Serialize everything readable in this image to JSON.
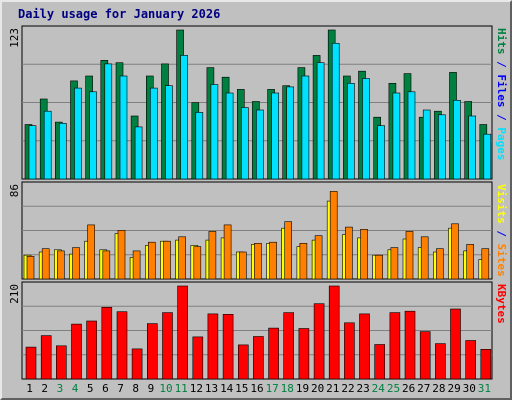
{
  "title": "Daily usage for January 2026",
  "colors": {
    "pages": "#00e0ff",
    "files": "#008040",
    "visits": "#ffff00",
    "sites": "#ff8000",
    "kbytes": "#ff0000",
    "weekend": "#008040",
    "weekday": "#000000",
    "title": "#000080",
    "slash": "#0000ff"
  },
  "chart_data": [
    {
      "type": "bar",
      "ymax_label": "123",
      "ylim": [
        0,
        123
      ],
      "legend_labels": [
        "Pages",
        "Files",
        "Hits"
      ],
      "categories": [
        "1",
        "2",
        "3",
        "4",
        "5",
        "6",
        "7",
        "8",
        "9",
        "10",
        "11",
        "12",
        "13",
        "14",
        "15",
        "16",
        "17",
        "18",
        "19",
        "20",
        "21",
        "22",
        "23",
        "24",
        "25",
        "26",
        "27",
        "28",
        "29",
        "30",
        "31"
      ],
      "weekend_days": [
        "3",
        "4",
        "10",
        "11",
        "17",
        "18",
        "24",
        "25",
        "31"
      ],
      "series": [
        {
          "name": "Hits",
          "values": [
            45,
            66,
            47,
            81,
            85,
            98,
            96,
            52,
            85,
            95,
            123,
            63,
            92,
            84,
            74,
            64,
            74,
            77,
            92,
            102,
            123,
            85,
            89,
            51,
            79,
            87,
            51,
            56,
            88,
            64,
            45
          ]
        },
        {
          "name": "Files",
          "values": [
            44,
            56,
            46,
            75,
            72,
            95,
            85,
            43,
            75,
            77,
            102,
            55,
            78,
            71,
            59,
            57,
            71,
            76,
            85,
            96,
            112,
            79,
            83,
            44,
            71,
            72,
            57,
            53,
            65,
            52,
            37
          ]
        },
        {
          "name": "Pages",
          "values": [
            42,
            46,
            47,
            41,
            53,
            78,
            68,
            28,
            65,
            68,
            84,
            50,
            66,
            53,
            43,
            49,
            52,
            70,
            70,
            81,
            99,
            67,
            55,
            38,
            62,
            67,
            41,
            43,
            76,
            45,
            28
          ]
        }
      ]
    },
    {
      "type": "bar",
      "ymax_label": "86",
      "ylim": [
        0,
        86
      ],
      "legend_labels": [
        "Sites",
        "Visits"
      ],
      "categories": [
        "1",
        "2",
        "3",
        "4",
        "5",
        "6",
        "7",
        "8",
        "9",
        "10",
        "11",
        "12",
        "13",
        "14",
        "15",
        "16",
        "17",
        "18",
        "19",
        "20",
        "21",
        "22",
        "23",
        "24",
        "25",
        "26",
        "27",
        "28",
        "29",
        "30",
        "31"
      ],
      "series": [
        {
          "name": "Visits",
          "values": [
            22,
            25,
            27,
            23,
            35,
            27,
            42,
            20,
            31,
            35,
            36,
            31,
            36,
            38,
            25,
            32,
            33,
            47,
            30,
            36,
            72,
            41,
            38,
            22,
            27,
            37,
            29,
            25,
            47,
            26,
            18
          ]
        },
        {
          "name": "Sites",
          "values": [
            21,
            28,
            26,
            29,
            50,
            26,
            45,
            26,
            34,
            35,
            39,
            30,
            44,
            50,
            25,
            33,
            34,
            53,
            33,
            40,
            81,
            48,
            46,
            22,
            29,
            44,
            39,
            28,
            51,
            32,
            28
          ]
        }
      ]
    },
    {
      "type": "bar",
      "ymax_label": "210",
      "ylim": [
        0,
        210
      ],
      "legend_labels": [
        "KBytes"
      ],
      "categories": [
        "1",
        "2",
        "3",
        "4",
        "5",
        "6",
        "7",
        "8",
        "9",
        "10",
        "11",
        "12",
        "13",
        "14",
        "15",
        "16",
        "17",
        "18",
        "19",
        "20",
        "21",
        "22",
        "23",
        "24",
        "25",
        "26",
        "27",
        "28",
        "29",
        "30",
        "31"
      ],
      "series": [
        {
          "name": "KBytes",
          "values": [
            72,
            98,
            75,
            124,
            131,
            162,
            152,
            68,
            125,
            150,
            210,
            95,
            147,
            146,
            77,
            96,
            115,
            150,
            114,
            170,
            210,
            127,
            147,
            78,
            150,
            153,
            107,
            80,
            158,
            87,
            67
          ]
        }
      ]
    }
  ]
}
